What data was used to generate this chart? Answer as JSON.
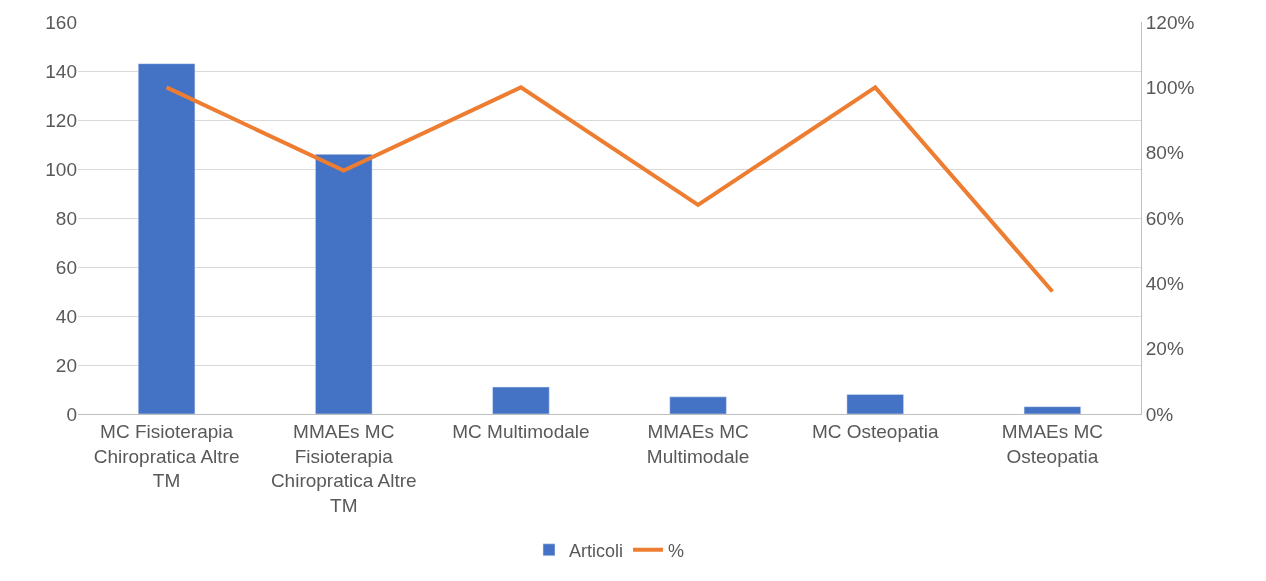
{
  "chart_data": {
    "type": "bar",
    "categories": [
      "MC Fisioterapia Chiropratica Altre TM",
      "MMAEs MC Fisioterapia Chiropratica Altre TM",
      "MC Multimodale",
      "MMAEs MC Multimodale",
      "MC Osteopatia",
      "MMAEs MC Osteopatia"
    ],
    "series": [
      {
        "name": "Articoli",
        "color": "#4472c4",
        "values": [
          143,
          106,
          11,
          7,
          8,
          3
        ]
      },
      {
        "name": "%",
        "type": "line",
        "axis": "y2",
        "color": "#ed7d31",
        "values": [
          100,
          74.5,
          100,
          64,
          100,
          37.5
        ]
      }
    ],
    "ylim": [
      0,
      160
    ],
    "yticks": [
      0,
      20,
      40,
      60,
      80,
      100,
      120,
      140,
      160
    ],
    "y2lim": [
      0,
      120
    ],
    "y2ticks": [
      {
        "value": 0,
        "label": "0%"
      },
      {
        "value": 20,
        "label": "20%"
      },
      {
        "value": 40,
        "label": "40%"
      },
      {
        "value": 60,
        "label": "60%"
      },
      {
        "value": 80,
        "label": "80%"
      },
      {
        "value": 100,
        "label": "100%"
      },
      {
        "value": 120,
        "label": "120%"
      }
    ],
    "grid": "y",
    "legend": "bottom",
    "marker": "none",
    "line_style": "solid"
  }
}
